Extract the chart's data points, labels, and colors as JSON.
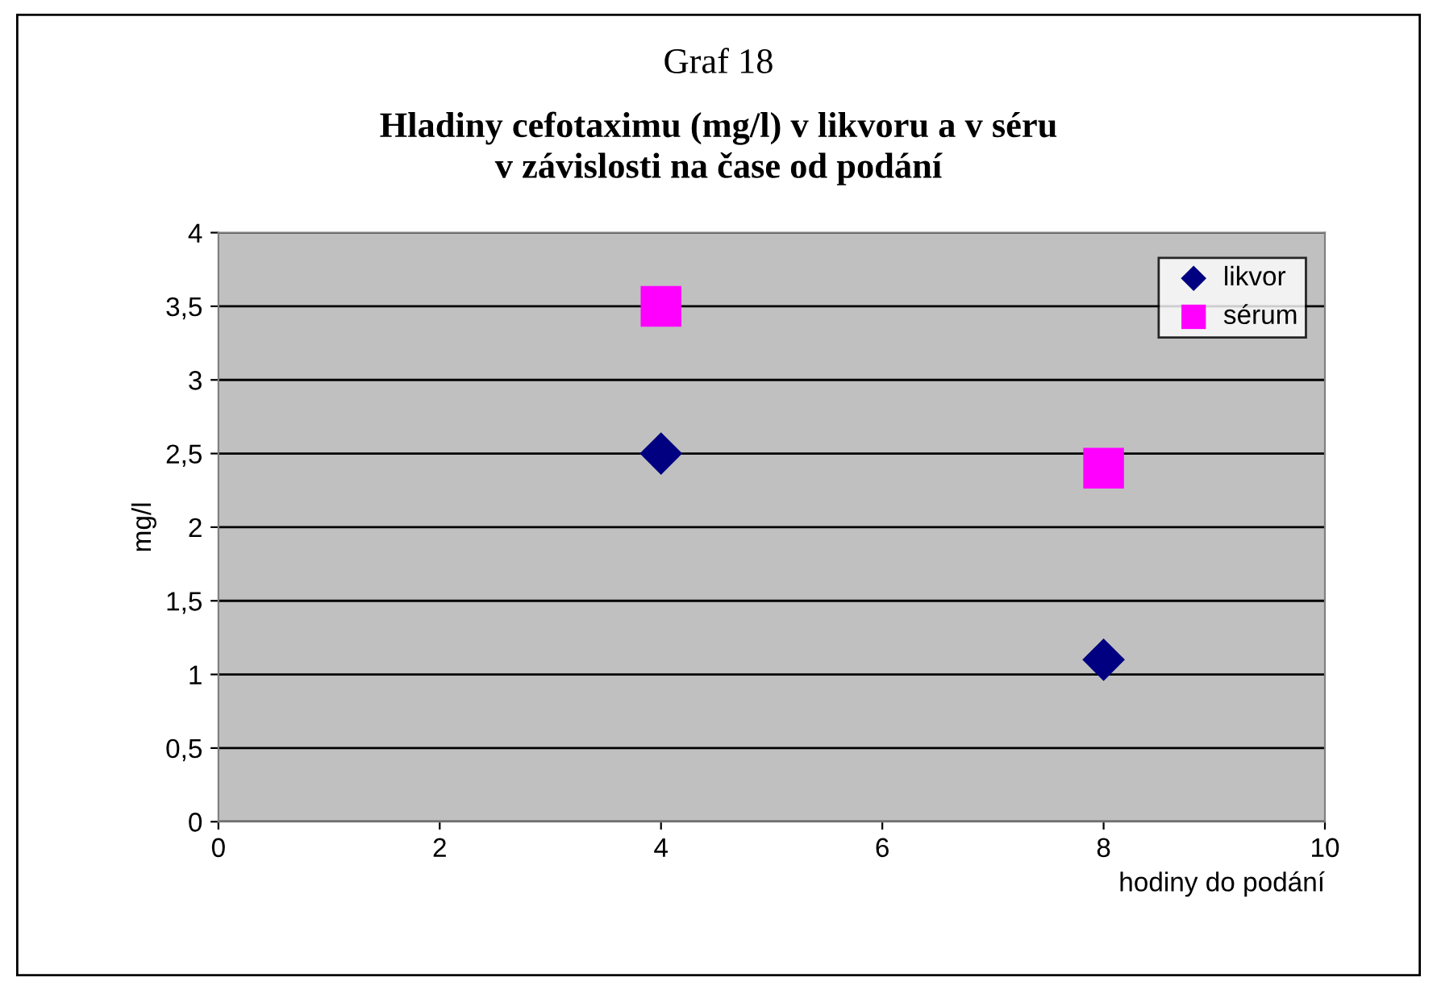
{
  "chart_data": {
    "type": "scatter",
    "title": "Graf 18",
    "subtitle": "Hladiny cefotaximu (mg/l) v likvoru a v séru\nv závislosti na čase od podání",
    "xlabel": "hodiny do podání",
    "ylabel": "mg/l",
    "series": [
      {
        "name": "likvor",
        "color": "#000080",
        "marker": "diamond",
        "values": [
          2.5,
          1.1
        ]
      },
      {
        "name": "sérum",
        "color": "#ff00ff",
        "marker": "square",
        "values": [
          3.5,
          2.4
        ]
      }
    ],
    "x": [
      4,
      8
    ],
    "xlim": [
      0,
      10
    ],
    "xticks": [
      0,
      2,
      4,
      6,
      8,
      10
    ],
    "ylim": [
      0,
      4
    ],
    "yticks": [
      0,
      {
        "value": 0.5,
        "label": "0,5"
      },
      1,
      {
        "value": 1.5,
        "label": "1,5"
      },
      2,
      {
        "value": 2.5,
        "label": "2,5"
      },
      3,
      {
        "value": 3.5,
        "label": "3,5"
      },
      4
    ],
    "grid": "y",
    "legend": "top right"
  }
}
